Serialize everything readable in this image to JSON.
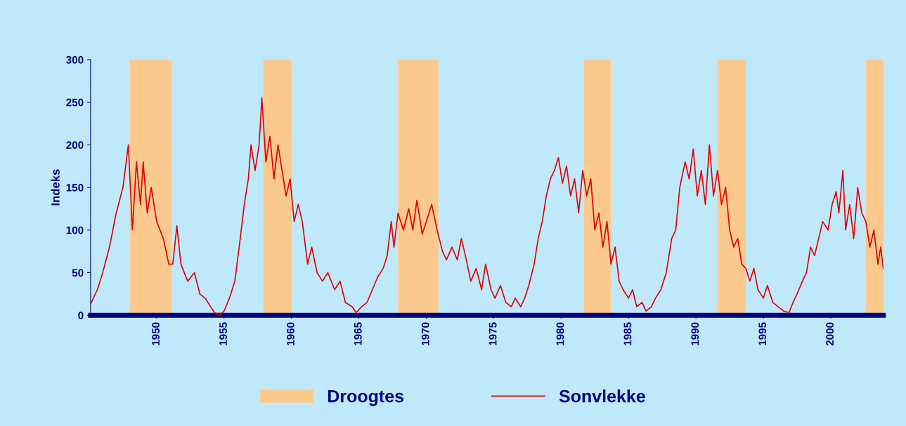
{
  "chart_data": {
    "type": "line",
    "ylabel": "Indeks",
    "xlim": [
      1945.1,
      2003.9
    ],
    "xticks": [
      1950,
      1955,
      1960,
      1965,
      1970,
      1975,
      1980,
      1985,
      1990,
      1995,
      2000
    ],
    "ylim": [
      0,
      300
    ],
    "yticks": [
      0,
      50,
      100,
      150,
      200,
      250,
      300
    ],
    "grid": false,
    "legend": "bottom",
    "marker": "none",
    "line_style": "solid",
    "series": [
      {
        "name": "Sonvlekke",
        "color": "#e00000",
        "x": [
          1945.1,
          1945.6,
          1946.0,
          1946.5,
          1947.0,
          1947.5,
          1947.9,
          1948.2,
          1948.5,
          1948.8,
          1949.0,
          1949.3,
          1949.6,
          1950.0,
          1950.5,
          1950.9,
          1951.2,
          1951.5,
          1951.8,
          1952.3,
          1952.8,
          1953.2,
          1953.6,
          1954.0,
          1954.3,
          1954.7,
          1955.0,
          1955.4,
          1955.8,
          1956.2,
          1956.5,
          1956.8,
          1957.0,
          1957.3,
          1957.6,
          1957.8,
          1958.1,
          1958.4,
          1958.7,
          1959.0,
          1959.3,
          1959.6,
          1959.9,
          1960.2,
          1960.5,
          1960.8,
          1961.2,
          1961.5,
          1961.9,
          1962.3,
          1962.7,
          1963.2,
          1963.6,
          1964.0,
          1964.5,
          1964.8,
          1965.2,
          1965.6,
          1966.0,
          1966.4,
          1966.8,
          1967.1,
          1967.4,
          1967.6,
          1967.9,
          1968.3,
          1968.7,
          1969.0,
          1969.3,
          1969.7,
          1970.0,
          1970.4,
          1970.8,
          1971.2,
          1971.5,
          1971.9,
          1972.3,
          1972.6,
          1972.9,
          1973.3,
          1973.7,
          1974.1,
          1974.4,
          1974.8,
          1975.1,
          1975.5,
          1975.9,
          1976.3,
          1976.6,
          1977.0,
          1977.3,
          1977.6,
          1978.0,
          1978.3,
          1978.6,
          1978.9,
          1979.2,
          1979.5,
          1979.8,
          1980.1,
          1980.4,
          1980.7,
          1981.0,
          1981.3,
          1981.6,
          1981.9,
          1982.2,
          1982.5,
          1982.8,
          1983.1,
          1983.4,
          1983.7,
          1984.0,
          1984.3,
          1984.6,
          1985.0,
          1985.3,
          1985.6,
          1986.0,
          1986.3,
          1986.7,
          1987.0,
          1987.4,
          1987.8,
          1988.2,
          1988.5,
          1988.8,
          1989.2,
          1989.5,
          1989.8,
          1990.1,
          1990.4,
          1990.7,
          1991.0,
          1991.3,
          1991.6,
          1991.9,
          1992.2,
          1992.5,
          1992.8,
          1993.1,
          1993.4,
          1993.7,
          1994.0,
          1994.3,
          1994.6,
          1995.0,
          1995.3,
          1995.7,
          1996.1,
          1996.5,
          1996.9,
          1997.2,
          1997.5,
          1997.9,
          1998.2,
          1998.5,
          1998.8,
          1999.1,
          1999.4,
          1999.8,
          2000.1,
          2000.4,
          2000.6,
          2000.9,
          2001.1,
          2001.4,
          2001.7,
          2002.0,
          2002.3,
          2002.6,
          2002.9,
          2003.2,
          2003.5,
          2003.7,
          2003.9
        ],
        "values": [
          13,
          30,
          50,
          80,
          120,
          150,
          200,
          100,
          180,
          130,
          180,
          120,
          150,
          110,
          90,
          60,
          60,
          105,
          60,
          40,
          50,
          25,
          20,
          10,
          3,
          0,
          5,
          20,
          40,
          90,
          130,
          160,
          200,
          170,
          200,
          255,
          180,
          210,
          160,
          200,
          170,
          140,
          160,
          110,
          130,
          110,
          60,
          80,
          50,
          40,
          50,
          30,
          40,
          15,
          10,
          3,
          10,
          15,
          30,
          45,
          55,
          70,
          110,
          80,
          120,
          100,
          125,
          100,
          135,
          95,
          110,
          130,
          100,
          75,
          65,
          80,
          65,
          90,
          70,
          40,
          55,
          30,
          60,
          30,
          20,
          35,
          15,
          10,
          20,
          10,
          20,
          35,
          60,
          90,
          110,
          140,
          160,
          170,
          185,
          155,
          175,
          140,
          160,
          120,
          170,
          140,
          160,
          100,
          120,
          80,
          110,
          60,
          80,
          40,
          30,
          20,
          30,
          10,
          15,
          5,
          10,
          20,
          30,
          50,
          90,
          100,
          150,
          180,
          160,
          195,
          140,
          170,
          130,
          200,
          140,
          170,
          130,
          150,
          100,
          80,
          90,
          60,
          55,
          40,
          55,
          30,
          20,
          35,
          15,
          10,
          5,
          3,
          15,
          25,
          40,
          50,
          80,
          70,
          90,
          110,
          100,
          130,
          145,
          120,
          170,
          100,
          130,
          90,
          150,
          120,
          110,
          80,
          100,
          60,
          80,
          55
        ]
      }
    ],
    "bands": [
      {
        "axis": "x",
        "from": 1948.0,
        "to": 1951.1,
        "label": "Droogtes",
        "color": "#fbc98e"
      },
      {
        "axis": "x",
        "from": 1957.9,
        "to": 1960.0,
        "color": "#fbc98e"
      },
      {
        "axis": "x",
        "from": 1967.9,
        "to": 1970.9,
        "color": "#fbc98e"
      },
      {
        "axis": "x",
        "from": 1981.7,
        "to": 1983.7,
        "color": "#fbc98e"
      },
      {
        "axis": "x",
        "from": 1991.6,
        "to": 1993.7,
        "color": "#fbc98e"
      },
      {
        "axis": "x",
        "from": 2002.6,
        "to": 2003.9,
        "color": "#fbc98e"
      }
    ]
  }
}
